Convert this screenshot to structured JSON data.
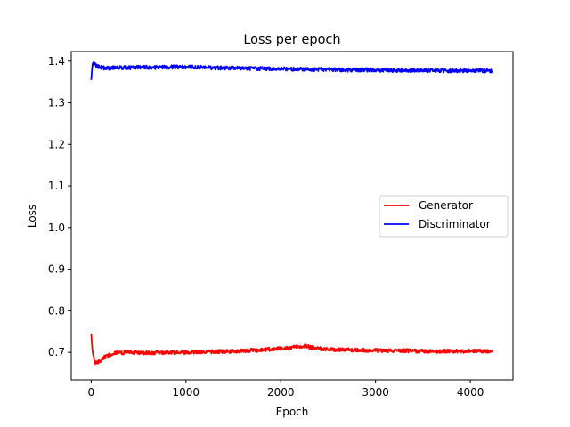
{
  "chart_data": {
    "type": "line",
    "title": "Loss per epoch",
    "xlabel": "Epoch",
    "ylabel": "Loss",
    "xlim": [
      -210,
      4450
    ],
    "ylim": [
      0.634,
      1.423
    ],
    "x_ticks": [
      0,
      1000,
      2000,
      3000,
      4000
    ],
    "x_tick_labels": [
      "0",
      "1000",
      "2000",
      "3000",
      "4000"
    ],
    "y_ticks": [
      0.7,
      0.8,
      0.9,
      1.0,
      1.1,
      1.2,
      1.3,
      1.4
    ],
    "y_tick_labels": [
      "0.7",
      "0.8",
      "0.9",
      "1.0",
      "1.1",
      "1.2",
      "1.3",
      "1.4"
    ],
    "grid": false,
    "legend_position": "center-right",
    "series": [
      {
        "name": "Generator",
        "color": "#ff0000",
        "points": [
          [
            0,
            0.745
          ],
          [
            15,
            0.7
          ],
          [
            40,
            0.675
          ],
          [
            80,
            0.678
          ],
          [
            150,
            0.69
          ],
          [
            250,
            0.698
          ],
          [
            400,
            0.7
          ],
          [
            600,
            0.699
          ],
          [
            800,
            0.7
          ],
          [
            1000,
            0.7
          ],
          [
            1200,
            0.701
          ],
          [
            1400,
            0.702
          ],
          [
            1600,
            0.704
          ],
          [
            1800,
            0.706
          ],
          [
            2000,
            0.709
          ],
          [
            2150,
            0.712
          ],
          [
            2250,
            0.716
          ],
          [
            2350,
            0.71
          ],
          [
            2500,
            0.707
          ],
          [
            2700,
            0.706
          ],
          [
            2900,
            0.705
          ],
          [
            3100,
            0.704
          ],
          [
            3300,
            0.704
          ],
          [
            3500,
            0.703
          ],
          [
            3700,
            0.703
          ],
          [
            3900,
            0.703
          ],
          [
            4100,
            0.703
          ],
          [
            4230,
            0.703
          ]
        ]
      },
      {
        "name": "Discriminator",
        "color": "#0000ff",
        "points": [
          [
            0,
            1.355
          ],
          [
            15,
            1.395
          ],
          [
            40,
            1.392
          ],
          [
            80,
            1.386
          ],
          [
            150,
            1.383
          ],
          [
            300,
            1.384
          ],
          [
            500,
            1.385
          ],
          [
            700,
            1.385
          ],
          [
            900,
            1.386
          ],
          [
            1100,
            1.386
          ],
          [
            1300,
            1.384
          ],
          [
            1500,
            1.383
          ],
          [
            1700,
            1.382
          ],
          [
            1900,
            1.382
          ],
          [
            2100,
            1.381
          ],
          [
            2300,
            1.38
          ],
          [
            2500,
            1.38
          ],
          [
            2700,
            1.379
          ],
          [
            2900,
            1.379
          ],
          [
            3100,
            1.378
          ],
          [
            3300,
            1.378
          ],
          [
            3500,
            1.378
          ],
          [
            3700,
            1.377
          ],
          [
            3900,
            1.377
          ],
          [
            4100,
            1.377
          ],
          [
            4230,
            1.377
          ]
        ]
      }
    ]
  }
}
